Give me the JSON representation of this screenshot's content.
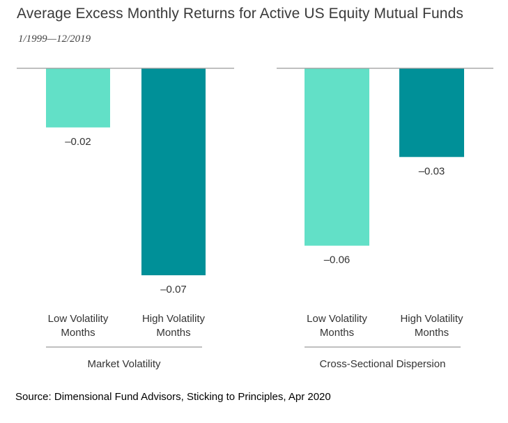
{
  "title": "Average Excess Monthly Returns for Active US Equity Mutual Funds",
  "subtitle": "1/1999—12/2019",
  "source": "Source: Dimensional Fund Advisors, Sticking to Principles, Apr 2020",
  "colors": {
    "low_volatility": "#62e0c7",
    "high_volatility": "#009098",
    "axis": "#999999",
    "text": "#333333"
  },
  "chart_data": [
    {
      "type": "bar",
      "group_label": "Market Volatility",
      "categories": [
        [
          "Low Volatility",
          "Months"
        ],
        [
          "High Volatility",
          "Months"
        ]
      ],
      "values": [
        -0.02,
        -0.07
      ],
      "value_labels": [
        "–0.02",
        "–0.07"
      ],
      "ylim": [
        -0.07,
        0
      ],
      "grid": false
    },
    {
      "type": "bar",
      "group_label": "Cross-Sectional Dispersion",
      "categories": [
        [
          "Low Volatility",
          "Months"
        ],
        [
          "High Volatility",
          "Months"
        ]
      ],
      "values": [
        -0.06,
        -0.03
      ],
      "value_labels": [
        "–0.06",
        "–0.03"
      ],
      "ylim": [
        -0.07,
        0
      ],
      "grid": false
    }
  ]
}
